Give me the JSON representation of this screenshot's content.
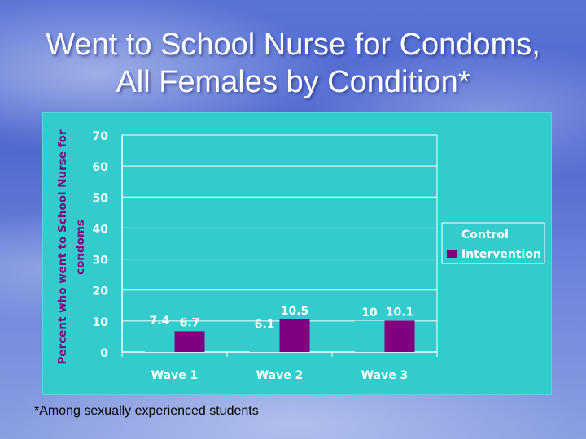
{
  "slide": {
    "title_line1": "Went to School Nurse for Condoms,",
    "title_line2": "All Females by Condition*",
    "footnote": "*Among sexually experienced students"
  },
  "chart_data": {
    "type": "bar",
    "title": "",
    "xlabel": "",
    "ylabel": "Percent who went to School Nurse for condoms",
    "categories": [
      "Wave 1",
      "Wave 2",
      "Wave 3"
    ],
    "ylim": [
      0,
      70
    ],
    "yticks": [
      0,
      10,
      20,
      30,
      40,
      50,
      60,
      70
    ],
    "grid": true,
    "legend_position": "right",
    "series": [
      {
        "name": "Control",
        "values": [
          7.4,
          6.1,
          10
        ],
        "color": "#33cccc"
      },
      {
        "name": "Intervention",
        "values": [
          6.7,
          10.5,
          10.1
        ],
        "color": "#800080"
      }
    ]
  }
}
